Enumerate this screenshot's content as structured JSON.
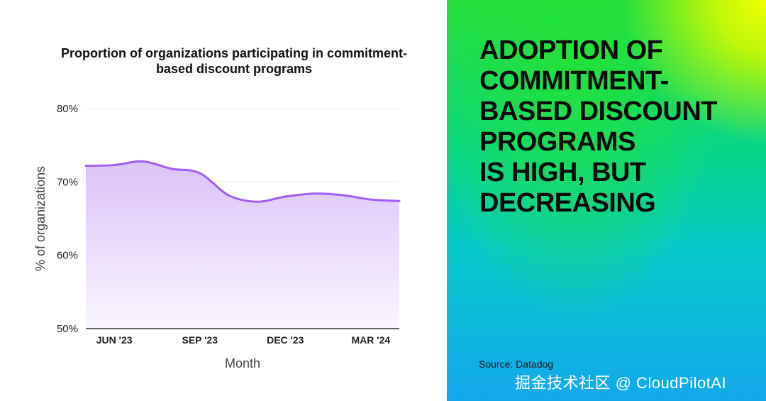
{
  "chart_data": {
    "type": "area",
    "title": "Proportion of organizations participating in commitment-based discount programs",
    "xlabel": "Month",
    "ylabel": "% of organizations",
    "ylim": [
      50,
      80
    ],
    "y_ticks": [
      "80%",
      "70%",
      "60%",
      "50%"
    ],
    "y_tick_values": [
      80,
      70,
      60,
      50
    ],
    "x_tick_labels": [
      "JUN '23",
      "SEP '23",
      "DEC '23",
      "MAR '24"
    ],
    "x_tick_positions": [
      1,
      4,
      7,
      10
    ],
    "x_range": [
      0,
      11
    ],
    "grid": true,
    "series": [
      {
        "x": [
          0,
          1,
          2,
          3,
          4,
          5,
          6,
          7,
          8,
          9,
          10,
          11
        ],
        "values": [
          72.2,
          72.3,
          72.8,
          71.8,
          71.2,
          68.2,
          67.3,
          68.0,
          68.4,
          68.2,
          67.6,
          67.4
        ]
      }
    ],
    "colors": {
      "line": "#a25cf0",
      "fill_top": "#dcc2fa",
      "fill_bottom": "#faf6ff",
      "grid": "#ececec",
      "axis": "#333333"
    }
  },
  "headline": "ADOPTION OF\nCOMMITMENT-\nBASED DISCOUNT\nPROGRAMS\nIS HIGH, BUT\nDECREASING",
  "source": "Source: Datadog",
  "watermark": "掘金技术社区 @ CloudPilotAI"
}
